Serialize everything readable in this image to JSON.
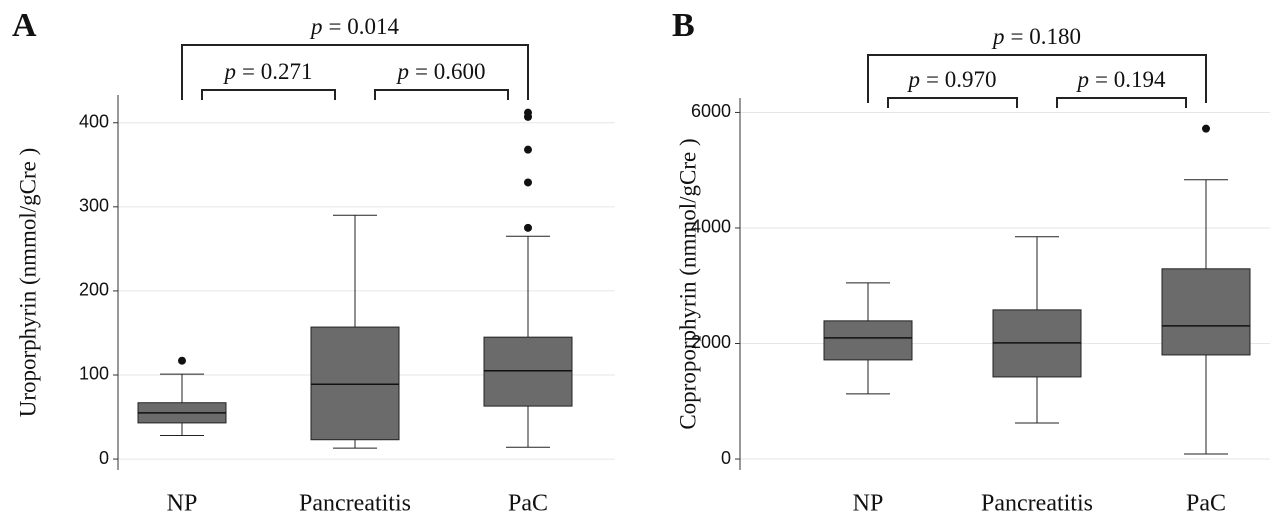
{
  "chart_data": [
    {
      "type": "box",
      "panel": "A",
      "ylabel": "Uroporphyrin (nmmol/gCre )",
      "categories": [
        "NP",
        "Pancreatitis",
        "PaC"
      ],
      "boxes": [
        {
          "min": 28,
          "q1": 43,
          "median": 55,
          "q3": 67,
          "max": 101,
          "outliers": [
            117
          ]
        },
        {
          "min": 13,
          "q1": 23,
          "median": 89,
          "q3": 157,
          "max": 290,
          "outliers": []
        },
        {
          "min": 14,
          "q1": 63,
          "median": 105,
          "q3": 145,
          "max": 265,
          "outliers": [
            275,
            329,
            368,
            407,
            412
          ]
        }
      ],
      "color": "#6b6b6b",
      "ylim": [
        -13,
        433
      ],
      "yticks": [
        0,
        100,
        200,
        300,
        400
      ],
      "grid": true,
      "annotations": [
        {
          "italic": "p",
          "text": "= 0.271"
        },
        {
          "italic": "p",
          "text": "= 0.600"
        },
        {
          "italic": "p",
          "text": "= 0.014"
        }
      ]
    },
    {
      "type": "box",
      "panel": "B",
      "ylabel": "Coproporphyrin (nmmol/gCre )",
      "categories": [
        "NP",
        "Pancreatitis",
        "PaC"
      ],
      "boxes": [
        {
          "min": 1127,
          "q1": 1716,
          "median": 2097,
          "q3": 2392,
          "max": 3050,
          "outliers": []
        },
        {
          "min": 624,
          "q1": 1421,
          "median": 2010,
          "q3": 2582,
          "max": 3847,
          "outliers": []
        },
        {
          "min": 87,
          "q1": 1802,
          "median": 2305,
          "q3": 3293,
          "max": 4835,
          "outliers": [
            5719
          ]
        }
      ],
      "color": "#6b6b6b",
      "ylim": [
        -190,
        6250
      ],
      "yticks": [
        0,
        2000,
        4000,
        6000
      ],
      "grid": true,
      "annotations": [
        {
          "italic": "p",
          "text": "= 0.970"
        },
        {
          "italic": "p",
          "text": "= 0.194"
        },
        {
          "italic": "p",
          "text": "= 0.180"
        }
      ]
    }
  ]
}
